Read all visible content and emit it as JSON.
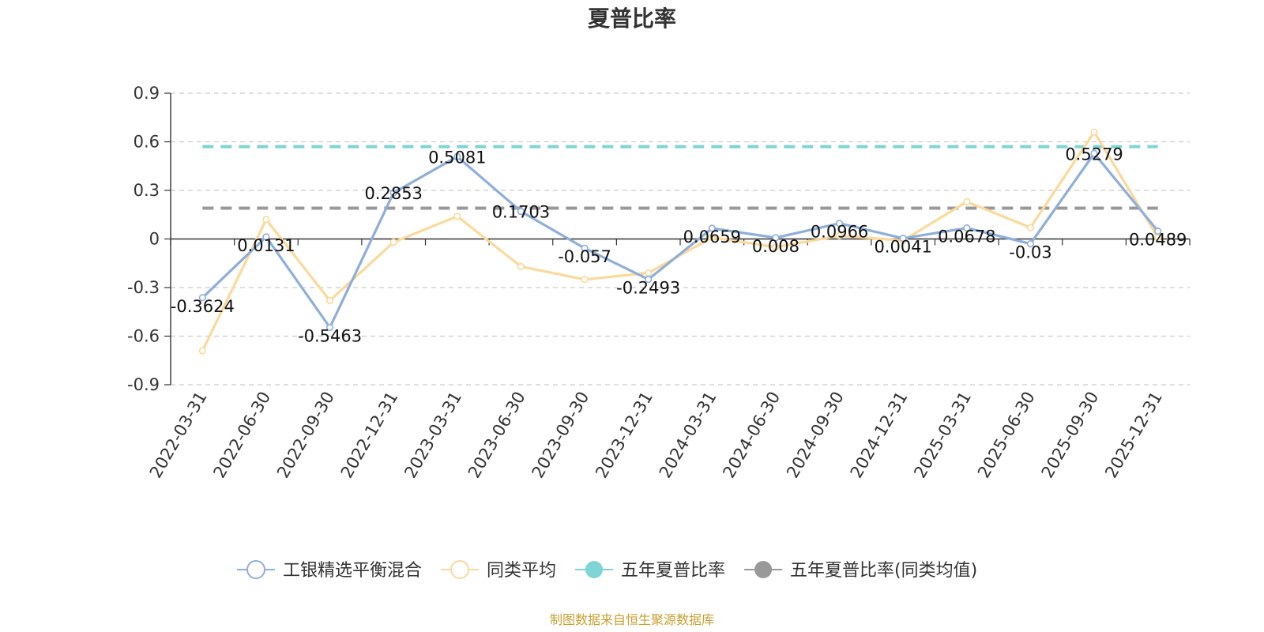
{
  "chart_data": {
    "type": "line",
    "title": "夏普比率",
    "x": [
      "2022-03-31",
      "2022-06-30",
      "2022-09-30",
      "2022-12-31",
      "2023-03-31",
      "2023-06-30",
      "2023-09-30",
      "2023-12-31",
      "2024-03-31",
      "2024-06-30",
      "2024-09-30",
      "2024-12-31",
      "2025-03-31",
      "2025-06-30",
      "2025-09-30",
      "2025-12-31"
    ],
    "ylim": [
      -0.9,
      0.9
    ],
    "yticks": [
      "0.9",
      "0.6",
      "0.3",
      "0",
      "-0.3",
      "-0.6",
      "-0.9"
    ],
    "ytick_values": [
      0.9,
      0.6,
      0.3,
      0,
      -0.3,
      -0.6,
      -0.9
    ],
    "grid": "horizontal dashed",
    "legend_position": "bottom",
    "series": [
      {
        "name": "工银精选平衡混合",
        "color": "#8eaedb",
        "values": [
          -0.3624,
          0.0131,
          -0.5463,
          0.2853,
          0.5081,
          0.1703,
          -0.057,
          -0.2493,
          0.0659,
          0.008,
          0.0966,
          0.0041,
          0.0678,
          -0.03,
          0.5279,
          0.0489
        ],
        "labels": [
          "-0.3624",
          "0.0131",
          "-0.5463",
          "0.2853",
          "0.5081",
          "0.1703",
          "-0.057",
          "-0.2493",
          "0.0659",
          "0.008",
          "0.0966",
          "0.0041",
          "0.0678",
          "-0.03",
          "0.5279",
          "0.0489"
        ]
      },
      {
        "name": "同类平均",
        "color": "#fbd99a",
        "values": [
          -0.69,
          0.12,
          -0.38,
          -0.02,
          0.14,
          -0.17,
          -0.25,
          -0.21,
          0.01,
          -0.05,
          0.02,
          -0.01,
          0.23,
          0.07,
          0.66,
          0.01
        ]
      },
      {
        "name": "五年夏普比率",
        "color": "#7fd4d4",
        "type": "constant-dashed",
        "value": 0.57
      },
      {
        "name": "五年夏普比率(同类均值)",
        "color": "#999999",
        "type": "constant-dashed",
        "value": 0.19
      }
    ],
    "source": "制图数据来自恒生聚源数据库"
  }
}
